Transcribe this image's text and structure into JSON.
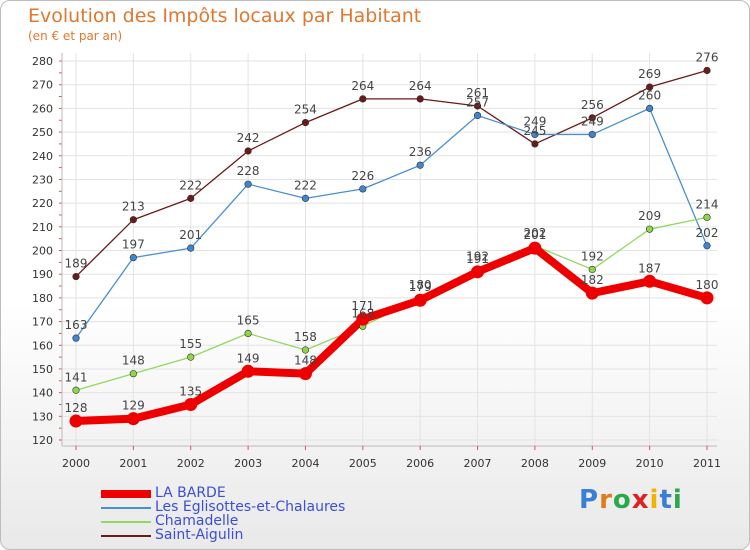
{
  "chart_data": {
    "type": "line",
    "title": "Evolution des Impôts locaux par Habitant",
    "subtitle": "(en € et par an)",
    "xlabel": "",
    "ylabel": "",
    "categories": [
      "2000",
      "2001",
      "2002",
      "2003",
      "2004",
      "2005",
      "2006",
      "2007",
      "2008",
      "2009",
      "2010",
      "2011"
    ],
    "ylim": [
      120,
      280
    ],
    "yticks": [
      120,
      130,
      140,
      150,
      160,
      170,
      180,
      190,
      200,
      210,
      220,
      230,
      240,
      250,
      260,
      270,
      280
    ],
    "grid": true,
    "legend_position": "bottom-left",
    "series": [
      {
        "name": "Saint-Aigulin",
        "color": "#6b1a1a",
        "values": [
          189,
          213,
          222,
          242,
          254,
          264,
          264,
          261,
          245,
          256,
          269,
          276
        ],
        "labels": [
          "189",
          "213",
          "222",
          "242",
          "254",
          "264",
          "264",
          "261",
          "245",
          "256",
          "269",
          "276"
        ]
      },
      {
        "name": "Les Eglisottes-et-Chalaures",
        "color": "#4a8fd0",
        "values": [
          163,
          197,
          201,
          228,
          222,
          226,
          236,
          257,
          249,
          249,
          260,
          202
        ],
        "labels": [
          "163",
          "197",
          "201",
          "228",
          "222",
          "226",
          "236",
          "257",
          "249",
          "249",
          "260",
          "202"
        ]
      },
      {
        "name": "Chamadelle",
        "color": "#90d860",
        "values": [
          141,
          148,
          155,
          165,
          158,
          168,
          180,
          192,
          202,
          192,
          209,
          214
        ],
        "labels": [
          "141",
          "148",
          "155",
          "165",
          "158",
          "168",
          "180",
          "192",
          "202",
          "192",
          "209",
          "214"
        ]
      },
      {
        "name": "LA BARDE",
        "color": "#ee0000",
        "values": [
          128,
          129,
          135,
          149,
          148,
          171,
          179,
          191,
          201,
          182,
          187,
          180
        ],
        "labels": [
          "128",
          "129",
          "135",
          "149",
          "148",
          "171",
          "179",
          "191",
          "201",
          "182",
          "187",
          "180"
        ]
      }
    ],
    "legend_order": [
      "LA BARDE",
      "Les Eglisottes-et-Chalaures",
      "Chamadelle",
      "Saint-Aigulin"
    ]
  },
  "logo": {
    "letters": [
      "P",
      "r",
      "o",
      "x",
      "i",
      "t",
      "i"
    ],
    "colors": [
      "#3a7fd5",
      "#e07a1a",
      "#2aa84a",
      "#e02020",
      "#f0b400",
      "#3a7fd5",
      "#2aa84a"
    ]
  }
}
